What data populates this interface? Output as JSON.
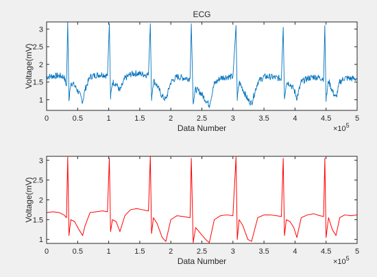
{
  "chart_data": [
    {
      "type": "line",
      "title": "ECG",
      "xlabel": "Data Number",
      "ylabel": "Voltage(mV)",
      "x_exponent_label": "×10",
      "x_exponent_power": "5",
      "xlim": [
        0,
        500000
      ],
      "ylim": [
        0.7,
        3.2
      ],
      "xticks": [
        0,
        50000,
        100000,
        150000,
        200000,
        250000,
        300000,
        350000,
        400000,
        450000,
        500000
      ],
      "xtick_labels": [
        "0",
        "0.5",
        "1",
        "1.5",
        "2",
        "2.5",
        "3",
        "3.5",
        "4",
        "4.5",
        "5"
      ],
      "yticks": [
        1,
        1.5,
        2,
        2.5,
        3
      ],
      "ytick_labels": [
        "1",
        "1.5",
        "2",
        "2.5",
        "3"
      ],
      "grid": false,
      "color": "#0072BD",
      "noisy": true,
      "series": [
        {
          "x": [
            0,
            10000,
            20000,
            28000,
            32000,
            34000,
            36000,
            39000,
            45000,
            52000,
            58000,
            62000,
            70000,
            80000,
            90000,
            98000,
            101000,
            103000,
            106000,
            112000,
            118000,
            126000,
            135000,
            145000,
            155000,
            164000,
            167000,
            169000,
            172000,
            178000,
            186000,
            192000,
            200000,
            210000,
            220000,
            231000,
            233000,
            236000,
            240000,
            248000,
            256000,
            262000,
            270000,
            280000,
            290000,
            300000,
            305000,
            307000,
            310000,
            316000,
            324000,
            330000,
            340000,
            350000,
            360000,
            370000,
            378000,
            381000,
            383000,
            386000,
            392000,
            398000,
            403000,
            410000,
            420000,
            430000,
            440000,
            446000,
            448000,
            450000,
            454000,
            460000,
            466000,
            472000,
            480000,
            490000,
            500000
          ],
          "y": [
            1.65,
            1.67,
            1.68,
            1.65,
            1.4,
            3.2,
            0.95,
            1.5,
            1.4,
            1.2,
            0.95,
            1.3,
            1.65,
            1.7,
            1.72,
            1.68,
            3.15,
            1.05,
            1.5,
            1.45,
            1.25,
            1.6,
            1.72,
            1.75,
            1.72,
            1.7,
            3.15,
            1.05,
            1.55,
            1.4,
            1.1,
            1.0,
            1.5,
            1.65,
            1.62,
            1.6,
            3.15,
            0.95,
            1.3,
            1.2,
            1.0,
            0.85,
            1.45,
            1.62,
            1.65,
            1.65,
            3.1,
            1.0,
            1.5,
            1.3,
            1.0,
            0.9,
            1.5,
            1.65,
            1.65,
            1.62,
            1.6,
            3.05,
            1.05,
            1.5,
            1.45,
            1.3,
            1.05,
            1.5,
            1.6,
            1.65,
            1.62,
            1.6,
            3.1,
            1.0,
            1.55,
            1.25,
            1.05,
            1.5,
            1.62,
            1.6,
            1.6
          ]
        }
      ]
    },
    {
      "type": "line",
      "title": "",
      "xlabel": "Data Number",
      "ylabel": "Voltage(mV)",
      "x_exponent_label": "×10",
      "x_exponent_power": "5",
      "xlim": [
        0,
        500000
      ],
      "ylim": [
        0.9,
        3.1
      ],
      "xticks": [
        0,
        50000,
        100000,
        150000,
        200000,
        250000,
        300000,
        350000,
        400000,
        450000,
        500000
      ],
      "xtick_labels": [
        "0",
        "0.5",
        "1",
        "1.5",
        "2",
        "2.5",
        "3",
        "3.5",
        "4",
        "4.5",
        "5"
      ],
      "yticks": [
        1,
        1.5,
        2,
        2.5,
        3
      ],
      "ytick_labels": [
        "1",
        "1.5",
        "2",
        "2.5",
        "3"
      ],
      "grid": false,
      "color": "#FF0000",
      "noisy": false,
      "series": [
        {
          "x": [
            0,
            10000,
            20000,
            28000,
            32000,
            34000,
            36000,
            39000,
            45000,
            52000,
            58000,
            62000,
            70000,
            80000,
            90000,
            98000,
            101000,
            103000,
            106000,
            112000,
            118000,
            126000,
            135000,
            145000,
            155000,
            164000,
            167000,
            169000,
            172000,
            178000,
            186000,
            192000,
            200000,
            210000,
            220000,
            231000,
            233000,
            236000,
            240000,
            248000,
            256000,
            262000,
            270000,
            280000,
            290000,
            300000,
            305000,
            307000,
            310000,
            316000,
            324000,
            330000,
            340000,
            350000,
            360000,
            370000,
            378000,
            381000,
            383000,
            386000,
            392000,
            398000,
            403000,
            410000,
            420000,
            430000,
            440000,
            446000,
            448000,
            450000,
            454000,
            460000,
            466000,
            472000,
            480000,
            490000,
            500000
          ],
          "y": [
            1.68,
            1.7,
            1.68,
            1.62,
            1.55,
            3.08,
            1.1,
            1.5,
            1.45,
            1.25,
            1.1,
            1.35,
            1.68,
            1.7,
            1.72,
            1.7,
            3.05,
            1.2,
            1.5,
            1.45,
            1.2,
            1.6,
            1.75,
            1.78,
            1.75,
            1.72,
            3.1,
            1.15,
            1.55,
            1.4,
            1.05,
            0.95,
            1.5,
            1.6,
            1.58,
            1.55,
            3.05,
            0.92,
            1.3,
            1.15,
            1.0,
            0.92,
            1.5,
            1.6,
            1.62,
            1.6,
            3.08,
            1.0,
            1.5,
            1.35,
            1.0,
            0.95,
            1.55,
            1.62,
            1.62,
            1.6,
            1.58,
            3.05,
            1.1,
            1.5,
            1.45,
            1.3,
            1.05,
            1.55,
            1.62,
            1.65,
            1.6,
            1.58,
            3.05,
            1.05,
            1.55,
            1.25,
            1.1,
            1.55,
            1.62,
            1.6,
            1.62
          ]
        }
      ]
    }
  ]
}
